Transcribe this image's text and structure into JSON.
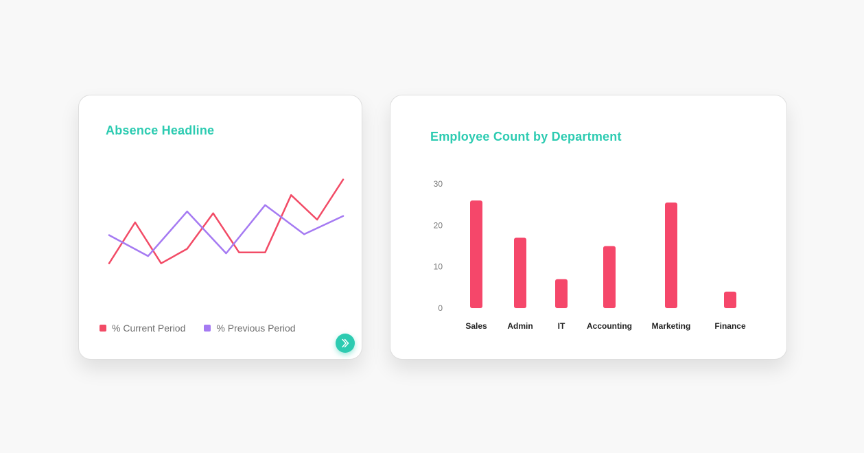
{
  "colors": {
    "accent": "#2ccbb1",
    "current": "#f24b66",
    "previous": "#a57af2",
    "bar": "#f5476a"
  },
  "absence_card": {
    "title": "Absence Headline",
    "legend": [
      {
        "label": "% Current Period",
        "color": "#f24b66"
      },
      {
        "label": "% Previous Period",
        "color": "#a57af2"
      }
    ],
    "next_icon": "chevron-right-icon"
  },
  "employee_card": {
    "title": "Employee Count by Department"
  },
  "chart_data": [
    {
      "type": "line",
      "title": "Absence Headline",
      "axes_visible": false,
      "grid": false,
      "legend_position": "bottom-left",
      "series": [
        {
          "name": "% Current Period",
          "color": "#f24b66",
          "values": [
            1.0,
            5.5,
            1.0,
            2.6,
            6.5,
            2.2,
            2.2,
            8.5,
            5.8,
            10.2
          ]
        },
        {
          "name": "% Previous Period",
          "color": "#a57af2",
          "values": [
            4.1,
            1.8,
            6.7,
            2.1,
            7.4,
            4.2,
            6.2
          ]
        }
      ]
    },
    {
      "type": "bar",
      "title": "Employee Count by Department",
      "categories": [
        "Sales",
        "Admin",
        "IT",
        "Accounting",
        "Marketing",
        "Finance"
      ],
      "values": [
        26,
        17,
        7,
        15,
        25.5,
        4
      ],
      "ylim": [
        0,
        30
      ],
      "yticks": [
        0,
        10,
        20,
        30
      ],
      "grid": false
    }
  ]
}
